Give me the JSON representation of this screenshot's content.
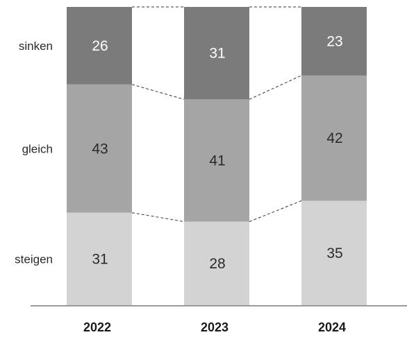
{
  "chart_data": {
    "type": "bar",
    "stacked": true,
    "normalized_percent": true,
    "categories": [
      "2022",
      "2023",
      "2024"
    ],
    "series": [
      {
        "name": "steigen",
        "values": [
          31,
          28,
          35
        ],
        "color": "#d3d3d3"
      },
      {
        "name": "gleich",
        "values": [
          43,
          41,
          42
        ],
        "color": "#a5a5a5"
      },
      {
        "name": "sinken",
        "values": [
          26,
          31,
          23
        ],
        "color": "#7b7b7b"
      }
    ],
    "connectors": "dashed lines between bar segment boundaries",
    "baseline_color": "#9a9a9a",
    "grid": false,
    "legend": "row labels on left"
  }
}
